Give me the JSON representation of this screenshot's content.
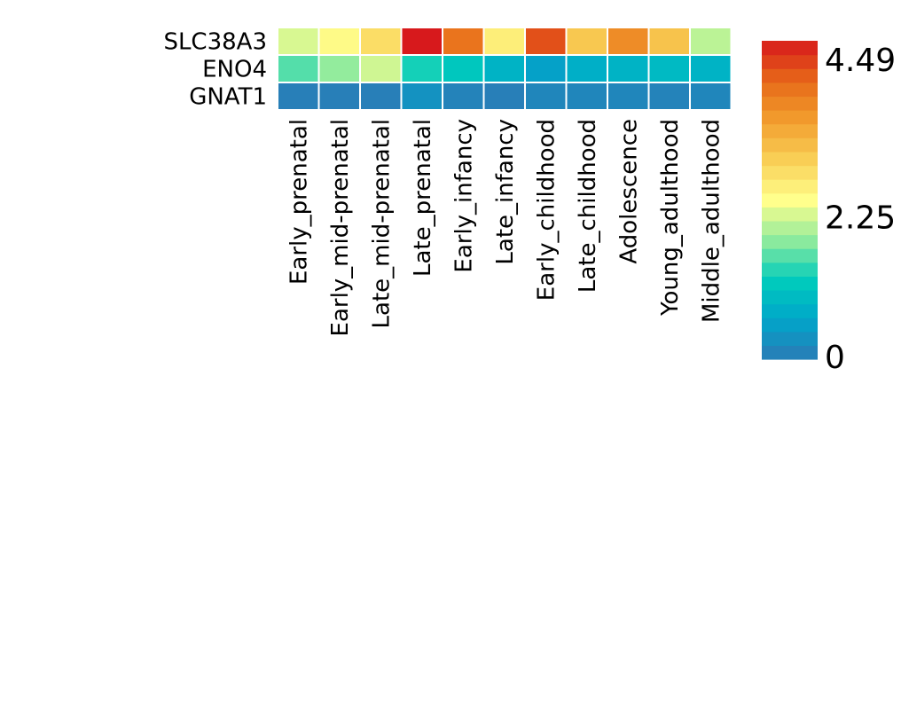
{
  "chart_data": {
    "type": "heatmap",
    "rows": [
      "SLC38A3",
      "ENO4",
      "GNAT1"
    ],
    "columns": [
      "Early_prenatal",
      "Early_mid-prenatal",
      "Late_mid-prenatal",
      "Late_prenatal",
      "Early_infancy",
      "Late_infancy",
      "Early_childhood",
      "Late_childhood",
      "Adolescence",
      "Young_adulthood",
      "Middle_adulthood"
    ],
    "values": [
      [
        2.05,
        2.3,
        2.65,
        4.49,
        3.8,
        2.45,
        4.1,
        2.9,
        3.55,
        2.95,
        1.9
      ],
      [
        1.45,
        1.7,
        2.0,
        1.2,
        1.05,
        0.75,
        0.5,
        0.7,
        0.75,
        0.85,
        0.75
      ],
      [
        0.05,
        0.05,
        0.05,
        0.3,
        0.1,
        0.05,
        0.15,
        0.15,
        0.15,
        0.1,
        0.15
      ]
    ],
    "colorbar": {
      "min": 0,
      "max": 4.49,
      "tick_labels": [
        "0",
        "2.25",
        "4.49"
      ],
      "colors": [
        "#2c7bb6",
        "#00a6ca",
        "#00ccbc",
        "#90eb9d",
        "#ffff8c",
        "#f9d057",
        "#f29e2e",
        "#e76818",
        "#d7191c"
      ]
    }
  }
}
